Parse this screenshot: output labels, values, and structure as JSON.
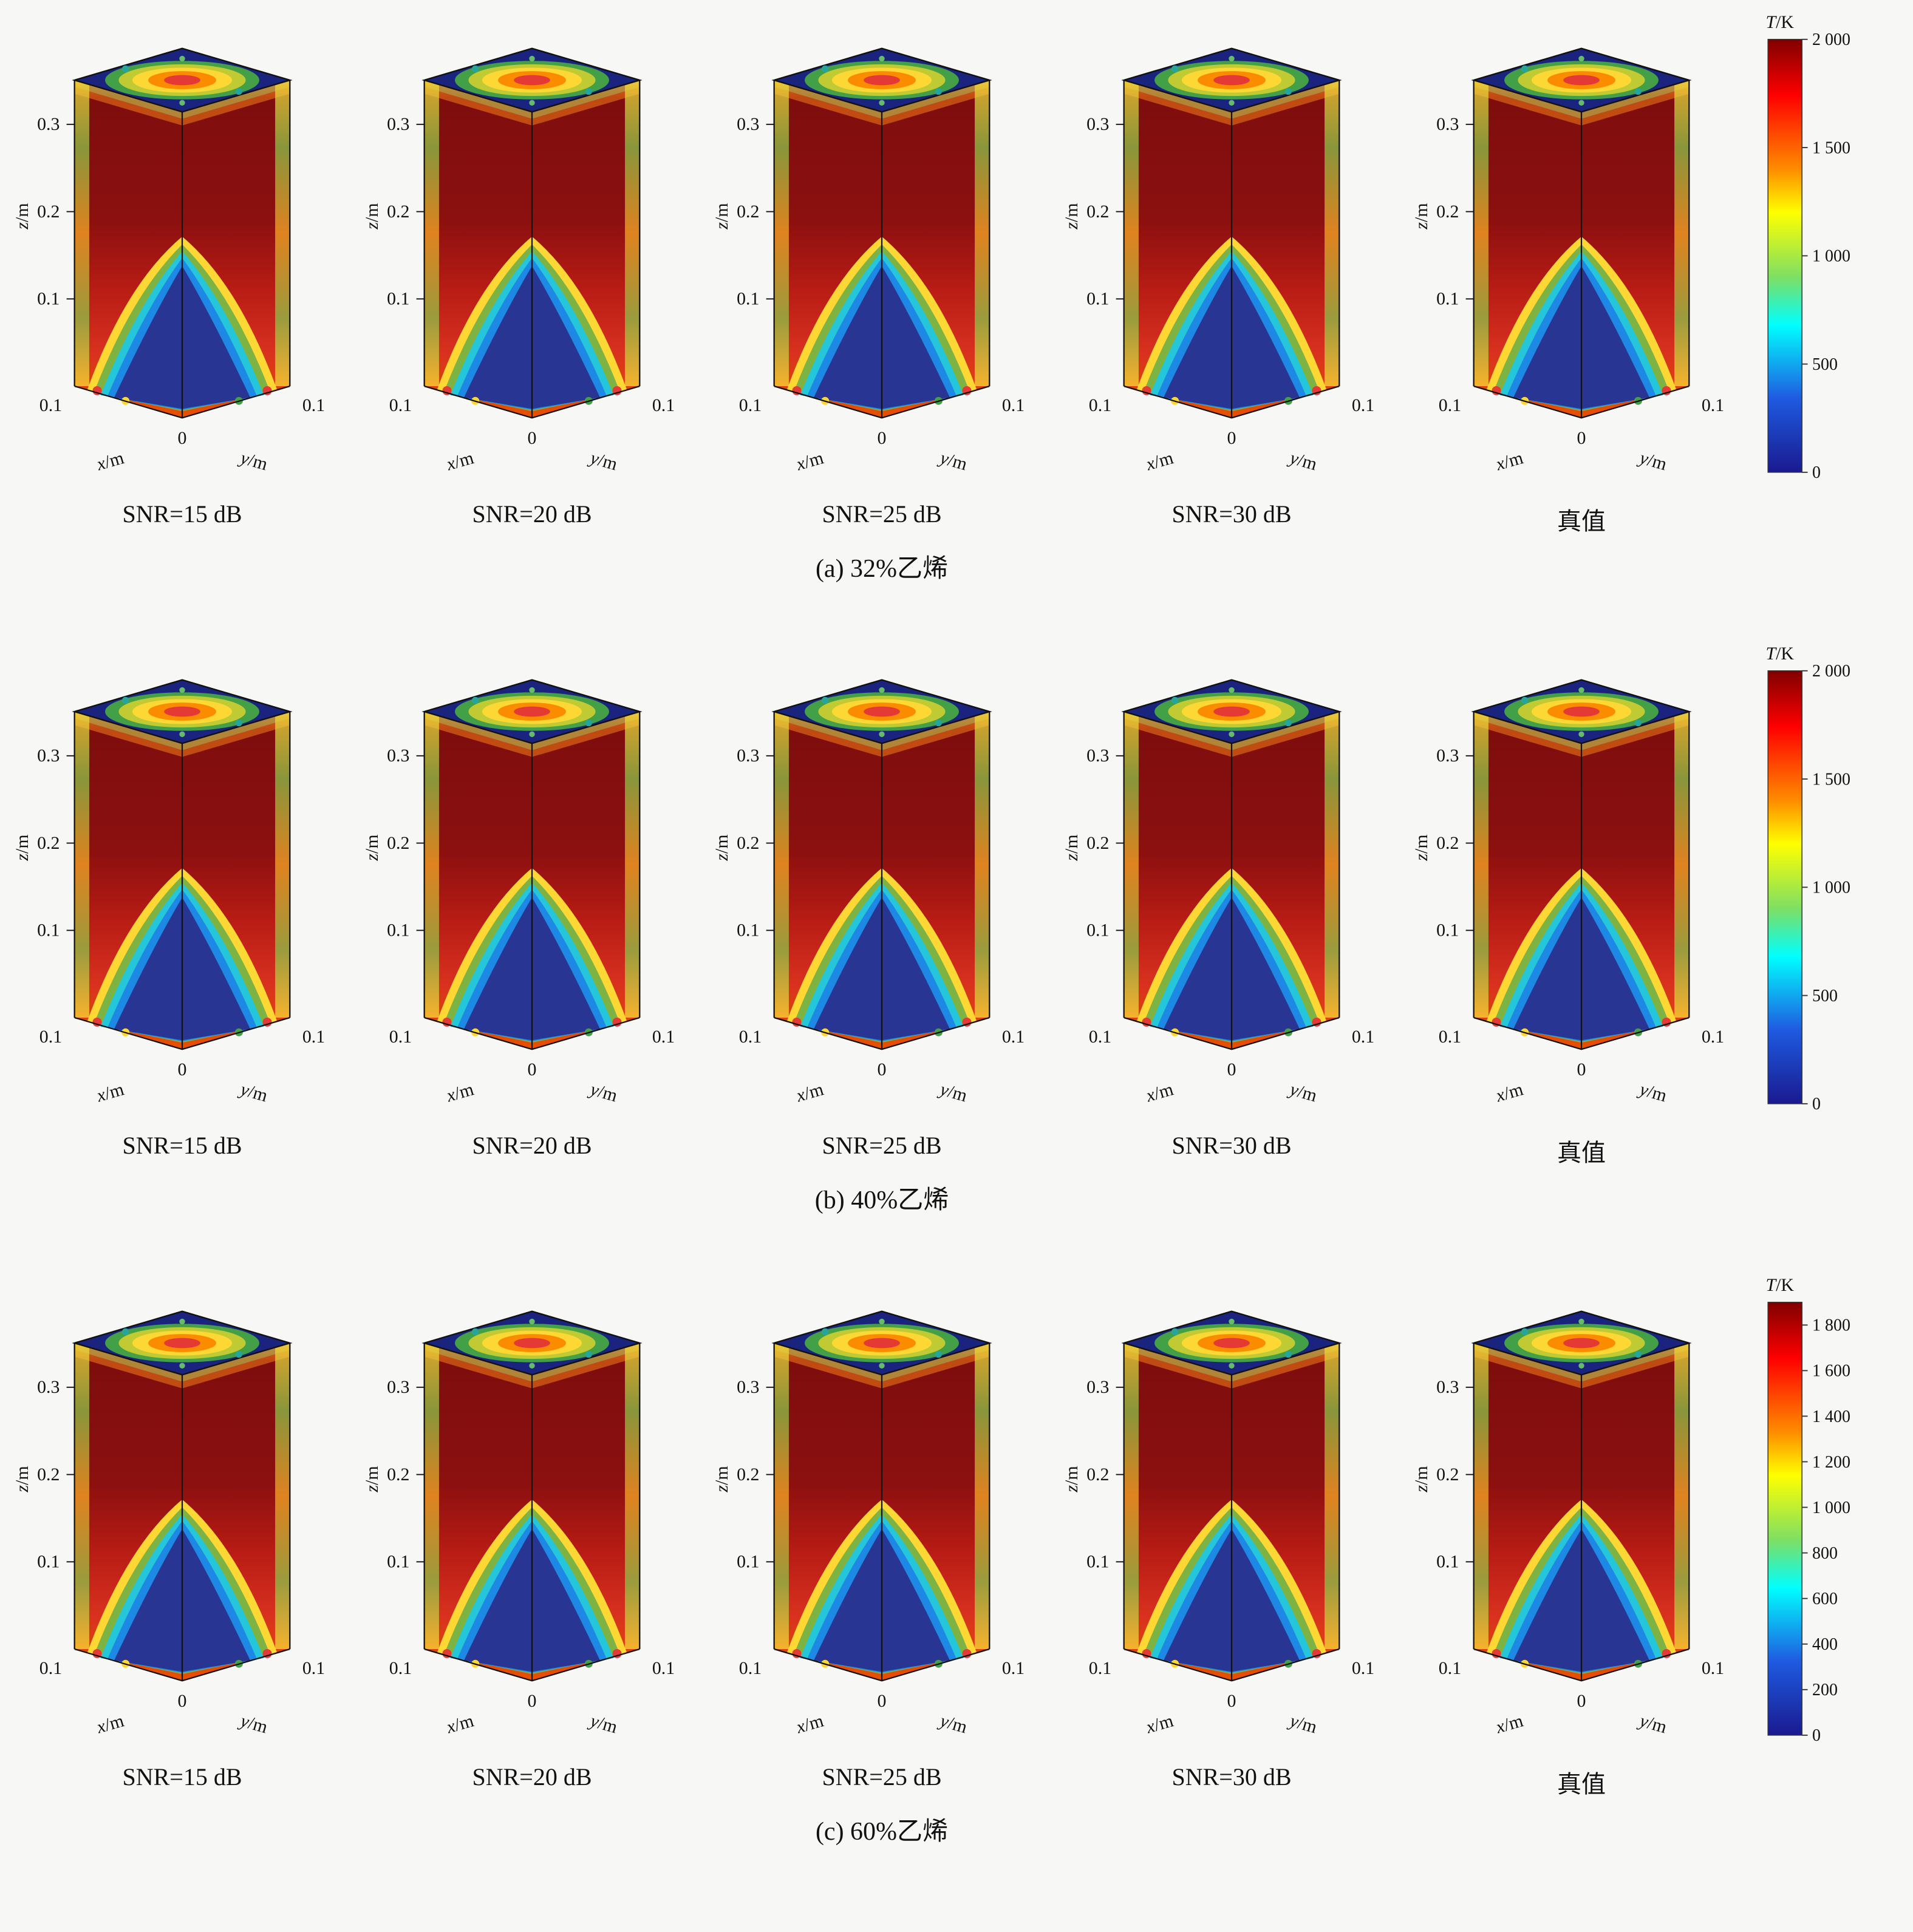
{
  "axes": {
    "z_var": "z",
    "x_var": "x",
    "y_var": "y",
    "unit_suffix": "/m",
    "z_ticks": [
      "0.3",
      "0.2",
      "0.1"
    ],
    "x_end_tick": "0.1",
    "y_end_tick": "0.1",
    "origin_tick": "0"
  },
  "panels": [
    {
      "caption": "(a) 32%乙烯",
      "subplots": [
        {
          "label": "SNR=15 dB"
        },
        {
          "label": "SNR=20 dB"
        },
        {
          "label": "SNR=25 dB"
        },
        {
          "label": "SNR=30 dB"
        },
        {
          "label": "真值"
        }
      ],
      "colorbar": {
        "title_var": "T",
        "title_unit": "/K",
        "scale_max": 2000,
        "ticks": [
          {
            "label": "2 000",
            "value": 2000
          },
          {
            "label": "1 500",
            "value": 1500
          },
          {
            "label": "1 000",
            "value": 1000
          },
          {
            "label": "500",
            "value": 500
          },
          {
            "label": "0",
            "value": 0
          }
        ]
      }
    },
    {
      "caption": "(b) 40%乙烯",
      "subplots": [
        {
          "label": "SNR=15 dB"
        },
        {
          "label": "SNR=20 dB"
        },
        {
          "label": "SNR=25 dB"
        },
        {
          "label": "SNR=30 dB"
        },
        {
          "label": "真值"
        }
      ],
      "colorbar": {
        "title_var": "T",
        "title_unit": "/K",
        "scale_max": 2000,
        "ticks": [
          {
            "label": "2 000",
            "value": 2000
          },
          {
            "label": "1 500",
            "value": 1500
          },
          {
            "label": "1 000",
            "value": 1000
          },
          {
            "label": "500",
            "value": 500
          },
          {
            "label": "0",
            "value": 0
          }
        ]
      }
    },
    {
      "caption": "(c) 60%乙烯",
      "subplots": [
        {
          "label": "SNR=15 dB"
        },
        {
          "label": "SNR=20 dB"
        },
        {
          "label": "SNR=25 dB"
        },
        {
          "label": "SNR=30 dB"
        },
        {
          "label": "真值"
        }
      ],
      "colorbar": {
        "title_var": "T",
        "title_unit": "/K",
        "scale_max": 1900,
        "ticks": [
          {
            "label": "1 800",
            "value": 1800
          },
          {
            "label": "1 600",
            "value": 1600
          },
          {
            "label": "1 400",
            "value": 1400
          },
          {
            "label": "1 200",
            "value": 1200
          },
          {
            "label": "1 000",
            "value": 1000
          },
          {
            "label": "800",
            "value": 800
          },
          {
            "label": "600",
            "value": 600
          },
          {
            "label": "400",
            "value": 400
          },
          {
            "label": "200",
            "value": 200
          },
          {
            "label": "0",
            "value": 0
          }
        ]
      }
    }
  ],
  "chart_data": [
    {
      "type": "heatmap",
      "subtype": "3d-volume-temperature-field",
      "title": "(a) 32%乙烯",
      "subplots": [
        "SNR=15 dB",
        "SNR=20 dB",
        "SNR=25 dB",
        "SNR=30 dB",
        "真值"
      ],
      "xlabel": "x/m",
      "ylabel": "y/m",
      "zlabel": "z/m",
      "x_ticks": [
        "0.1",
        "0"
      ],
      "y_ticks": [
        "0",
        "0.1"
      ],
      "z_ticks": [
        0.1,
        0.2,
        0.3
      ],
      "colorbar": {
        "label": "T/K",
        "min": 0,
        "max": 2000,
        "ticks": [
          0,
          500,
          1000,
          1500,
          2000
        ]
      },
      "legend": "none",
      "notes": "Reconstructed flame temperature volumes at four noise levels plus ground truth; hot core ~2000 K (dark red) in mid/upper column, cool ~0-500 K (dark blue) cone at base center."
    },
    {
      "type": "heatmap",
      "subtype": "3d-volume-temperature-field",
      "title": "(b) 40%乙烯",
      "subplots": [
        "SNR=15 dB",
        "SNR=20 dB",
        "SNR=25 dB",
        "SNR=30 dB",
        "真值"
      ],
      "xlabel": "x/m",
      "ylabel": "y/m",
      "zlabel": "z/m",
      "x_ticks": [
        "0.1",
        "0"
      ],
      "y_ticks": [
        "0",
        "0.1"
      ],
      "z_ticks": [
        0.1,
        0.2,
        0.3
      ],
      "colorbar": {
        "label": "T/K",
        "min": 0,
        "max": 2000,
        "ticks": [
          0,
          500,
          1000,
          1500,
          2000
        ]
      },
      "legend": "none",
      "notes": "Same layout as (a) for 40% ethylene."
    },
    {
      "type": "heatmap",
      "subtype": "3d-volume-temperature-field",
      "title": "(c) 60%乙烯",
      "subplots": [
        "SNR=15 dB",
        "SNR=20 dB",
        "SNR=25 dB",
        "SNR=30 dB",
        "真值"
      ],
      "xlabel": "x/m",
      "ylabel": "y/m",
      "zlabel": "z/m",
      "x_ticks": [
        "0.1",
        "0"
      ],
      "y_ticks": [
        "0",
        "0.1"
      ],
      "z_ticks": [
        0.1,
        0.2,
        0.3
      ],
      "colorbar": {
        "label": "T/K",
        "min": 0,
        "max": 1800,
        "ticks": [
          0,
          200,
          400,
          600,
          800,
          1000,
          1200,
          1400,
          1600,
          1800
        ]
      },
      "legend": "none",
      "notes": "Same layout for 60% ethylene; colorbar spans 0–1800 K."
    }
  ]
}
